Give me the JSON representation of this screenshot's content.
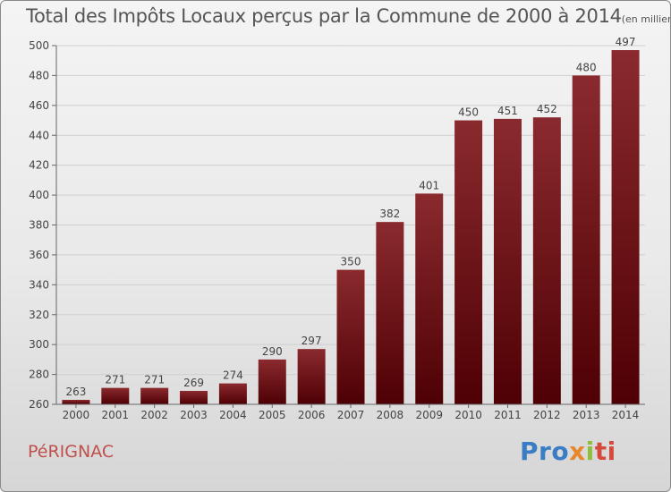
{
  "colors": {
    "bar": "#7a1a1e",
    "bar_dark": "#4e0004",
    "axis_text": "#444",
    "commune": "#c0504d"
  },
  "title": {
    "main": "Total des Impôts Locaux perçus par la Commune de 2000 à 2014",
    "unit": "(en milliers d'€)"
  },
  "commune": "PéRIGNAC",
  "logo": {
    "p1": "Pro",
    "p2": "x",
    "p3": "i",
    "p4": "ti"
  },
  "chart_data": {
    "type": "bar",
    "categories": [
      "2000",
      "2001",
      "2002",
      "2003",
      "2004",
      "2005",
      "2006",
      "2007",
      "2008",
      "2009",
      "2010",
      "2011",
      "2012",
      "2013",
      "2014"
    ],
    "values": [
      263,
      271,
      271,
      269,
      274,
      290,
      297,
      350,
      382,
      401,
      450,
      451,
      452,
      480,
      497
    ],
    "title": "Total des Impôts Locaux perçus par la Commune de 2000 à 2014",
    "ylabel": "",
    "xlabel": "",
    "ylim": [
      260,
      500
    ],
    "yticks": [
      260,
      280,
      300,
      320,
      340,
      360,
      380,
      400,
      420,
      440,
      460,
      480,
      500
    ],
    "grid": true
  }
}
